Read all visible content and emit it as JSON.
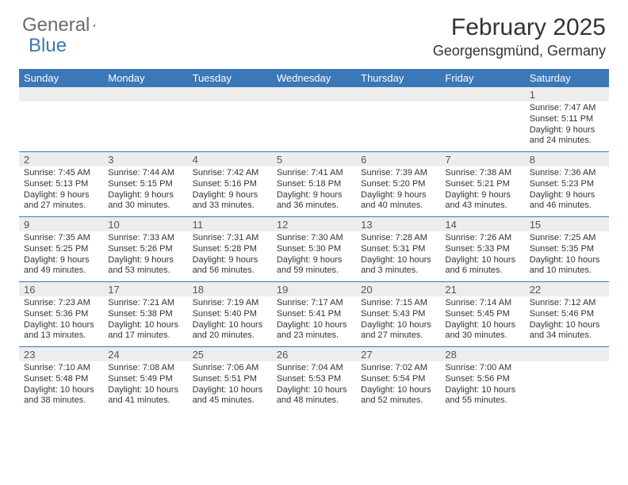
{
  "brand": {
    "word1": "General",
    "word2": "Blue"
  },
  "title": "February 2025",
  "location": "Georgensgmünd, Germany",
  "colors": {
    "header_bg": "#3a78b8",
    "header_text": "#ffffff",
    "daynum_bg": "#ededed",
    "border": "#3a78b8",
    "body_text": "#333333",
    "logo_gray": "#6b6b6b",
    "logo_blue": "#3a78b8"
  },
  "day_names": [
    "Sunday",
    "Monday",
    "Tuesday",
    "Wednesday",
    "Thursday",
    "Friday",
    "Saturday"
  ],
  "weeks": [
    {
      "nums": [
        "",
        "",
        "",
        "",
        "",
        "",
        "1"
      ],
      "cells": [
        "",
        "",
        "",
        "",
        "",
        "",
        "Sunrise: 7:47 AM\nSunset: 5:11 PM\nDaylight: 9 hours and 24 minutes."
      ]
    },
    {
      "nums": [
        "2",
        "3",
        "4",
        "5",
        "6",
        "7",
        "8"
      ],
      "cells": [
        "Sunrise: 7:45 AM\nSunset: 5:13 PM\nDaylight: 9 hours and 27 minutes.",
        "Sunrise: 7:44 AM\nSunset: 5:15 PM\nDaylight: 9 hours and 30 minutes.",
        "Sunrise: 7:42 AM\nSunset: 5:16 PM\nDaylight: 9 hours and 33 minutes.",
        "Sunrise: 7:41 AM\nSunset: 5:18 PM\nDaylight: 9 hours and 36 minutes.",
        "Sunrise: 7:39 AM\nSunset: 5:20 PM\nDaylight: 9 hours and 40 minutes.",
        "Sunrise: 7:38 AM\nSunset: 5:21 PM\nDaylight: 9 hours and 43 minutes.",
        "Sunrise: 7:36 AM\nSunset: 5:23 PM\nDaylight: 9 hours and 46 minutes."
      ]
    },
    {
      "nums": [
        "9",
        "10",
        "11",
        "12",
        "13",
        "14",
        "15"
      ],
      "cells": [
        "Sunrise: 7:35 AM\nSunset: 5:25 PM\nDaylight: 9 hours and 49 minutes.",
        "Sunrise: 7:33 AM\nSunset: 5:26 PM\nDaylight: 9 hours and 53 minutes.",
        "Sunrise: 7:31 AM\nSunset: 5:28 PM\nDaylight: 9 hours and 56 minutes.",
        "Sunrise: 7:30 AM\nSunset: 5:30 PM\nDaylight: 9 hours and 59 minutes.",
        "Sunrise: 7:28 AM\nSunset: 5:31 PM\nDaylight: 10 hours and 3 minutes.",
        "Sunrise: 7:26 AM\nSunset: 5:33 PM\nDaylight: 10 hours and 6 minutes.",
        "Sunrise: 7:25 AM\nSunset: 5:35 PM\nDaylight: 10 hours and 10 minutes."
      ]
    },
    {
      "nums": [
        "16",
        "17",
        "18",
        "19",
        "20",
        "21",
        "22"
      ],
      "cells": [
        "Sunrise: 7:23 AM\nSunset: 5:36 PM\nDaylight: 10 hours and 13 minutes.",
        "Sunrise: 7:21 AM\nSunset: 5:38 PM\nDaylight: 10 hours and 17 minutes.",
        "Sunrise: 7:19 AM\nSunset: 5:40 PM\nDaylight: 10 hours and 20 minutes.",
        "Sunrise: 7:17 AM\nSunset: 5:41 PM\nDaylight: 10 hours and 23 minutes.",
        "Sunrise: 7:15 AM\nSunset: 5:43 PM\nDaylight: 10 hours and 27 minutes.",
        "Sunrise: 7:14 AM\nSunset: 5:45 PM\nDaylight: 10 hours and 30 minutes.",
        "Sunrise: 7:12 AM\nSunset: 5:46 PM\nDaylight: 10 hours and 34 minutes."
      ]
    },
    {
      "nums": [
        "23",
        "24",
        "25",
        "26",
        "27",
        "28",
        ""
      ],
      "cells": [
        "Sunrise: 7:10 AM\nSunset: 5:48 PM\nDaylight: 10 hours and 38 minutes.",
        "Sunrise: 7:08 AM\nSunset: 5:49 PM\nDaylight: 10 hours and 41 minutes.",
        "Sunrise: 7:06 AM\nSunset: 5:51 PM\nDaylight: 10 hours and 45 minutes.",
        "Sunrise: 7:04 AM\nSunset: 5:53 PM\nDaylight: 10 hours and 48 minutes.",
        "Sunrise: 7:02 AM\nSunset: 5:54 PM\nDaylight: 10 hours and 52 minutes.",
        "Sunrise: 7:00 AM\nSunset: 5:56 PM\nDaylight: 10 hours and 55 minutes.",
        ""
      ]
    }
  ]
}
